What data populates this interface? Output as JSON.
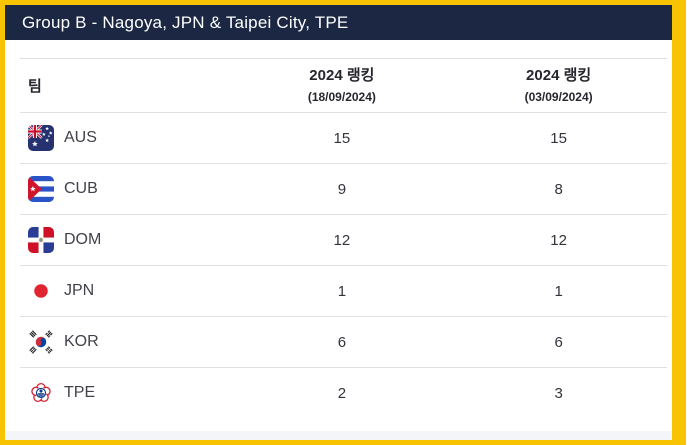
{
  "header": {
    "title": "Group B - Nagoya, JPN & Taipei City, TPE"
  },
  "table": {
    "columns": [
      {
        "label": "팀",
        "sublabel": ""
      },
      {
        "label": "2024 랭킹",
        "sublabel": "(18/09/2024)"
      },
      {
        "label": "2024 랭킹",
        "sublabel": "(03/09/2024)"
      }
    ],
    "rows": [
      {
        "team": "AUS",
        "flag": "aus",
        "rank_current": "15",
        "rank_previous": "15"
      },
      {
        "team": "CUB",
        "flag": "cub",
        "rank_current": "9",
        "rank_previous": "8"
      },
      {
        "team": "DOM",
        "flag": "dom",
        "rank_current": "12",
        "rank_previous": "12"
      },
      {
        "team": "JPN",
        "flag": "jpn",
        "rank_current": "1",
        "rank_previous": "1"
      },
      {
        "team": "KOR",
        "flag": "kor",
        "rank_current": "6",
        "rank_previous": "6"
      },
      {
        "team": "TPE",
        "flag": "tpe",
        "rank_current": "2",
        "rank_previous": "3"
      }
    ]
  },
  "colors": {
    "frame": "#F8C300",
    "header_bg": "#1B2743",
    "header_text": "#FFFFFF",
    "th_text": "#26262E",
    "team_text": "#41414B",
    "num_text": "#33333C",
    "line": "#DFDFE2",
    "strip": "#F4F5F8"
  }
}
